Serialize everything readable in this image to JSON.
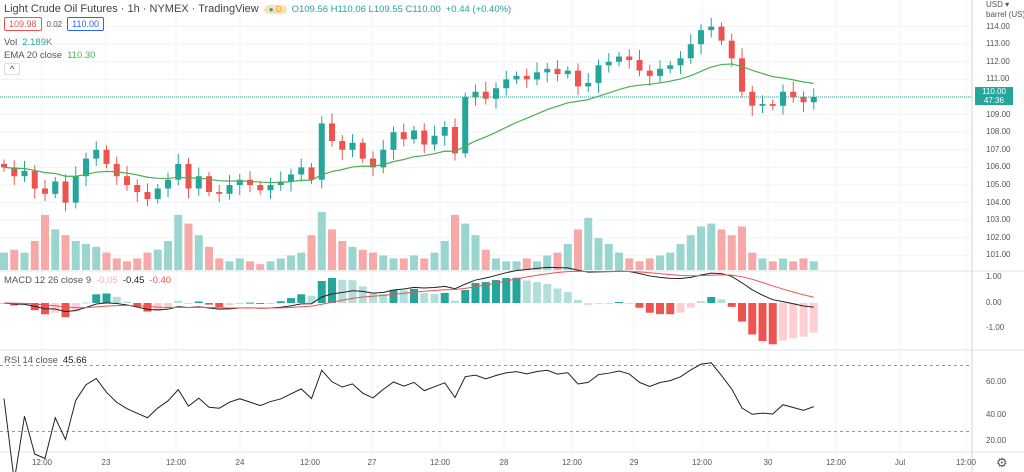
{
  "header": {
    "title": "Light Crude Oil Futures · 1h · NYMEX · TradingView",
    "badge": "D",
    "ohlc": "O109.56 H110.06 L109.55 C110.00",
    "change": "+0.44 (+0.40%)",
    "bid": "109.98",
    "spread": "0.02",
    "ask": "110.00"
  },
  "indicators": {
    "vol_label": "Vol",
    "vol_value": "2.189K",
    "ema_label": "EMA 20 close",
    "ema_value": "110.30",
    "collapse": "^",
    "macd_label": "MACD 12 26 close 9",
    "macd_hist": "-0.05",
    "macd_value": "-0.45",
    "macd_signal": "-0.40",
    "rsi_label": "RSI 14 close",
    "rsi_value": "45.66"
  },
  "price_axis": {
    "currency": "USD ▾",
    "unit": "barrel (US) ▾",
    "labels": [
      "114.00",
      "113.00",
      "112.00",
      "111.00",
      "109.00",
      "108.00",
      "107.00",
      "106.00",
      "105.00",
      "104.00",
      "103.00",
      "102.00",
      "101.00"
    ],
    "last_price": "110.00",
    "countdown": "47:36",
    "macd_labels": [
      "1.00",
      "0.00",
      "-1.00"
    ],
    "rsi_labels": [
      "60.00",
      "40.00",
      "20.00"
    ]
  },
  "time_axis": [
    "12:00",
    "23",
    "12:00",
    "24",
    "12:00",
    "27",
    "12:00",
    "28",
    "12:00",
    "29",
    "12:00",
    "30",
    "12:00",
    "Jul",
    "12:00"
  ],
  "colors": {
    "up": "#26a69a",
    "down": "#ef5350",
    "ema": "#4caf50"
  },
  "chart_data": {
    "type": "candlestick",
    "closes": [
      106,
      105.5,
      105.8,
      104.8,
      104.5,
      105.2,
      104,
      105.5,
      106.5,
      107,
      106.2,
      105.5,
      105,
      104.6,
      104.2,
      104.8,
      105.3,
      106.2,
      104.8,
      105.5,
      104.6,
      104.5,
      105,
      105.3,
      105,
      104.7,
      105,
      105.2,
      105.6,
      106,
      105.3,
      108.5,
      107.5,
      107,
      107.4,
      106.5,
      106,
      107,
      108,
      107.6,
      108.1,
      107.3,
      107.8,
      108.3,
      106.8,
      110,
      110.3,
      109.9,
      110.5,
      111,
      111.2,
      111,
      111.4,
      111.6,
      111.3,
      111.5,
      110.6,
      110.8,
      111.8,
      112,
      112.3,
      112.1,
      111.5,
      111.2,
      111.6,
      111.8,
      112.2,
      113,
      113.8,
      114,
      113.2,
      112.2,
      110.3,
      109.5,
      109.6,
      109.5,
      110.3,
      110,
      109.7,
      110
    ],
    "volumes": [
      0.3,
      0.35,
      0.3,
      0.5,
      0.95,
      0.7,
      0.6,
      0.5,
      0.45,
      0.4,
      0.3,
      0.2,
      0.15,
      0.2,
      0.3,
      0.35,
      0.5,
      0.95,
      0.8,
      0.6,
      0.4,
      0.2,
      0.15,
      0.2,
      0.15,
      0.1,
      0.15,
      0.2,
      0.25,
      0.3,
      0.6,
      1.0,
      0.7,
      0.5,
      0.4,
      0.35,
      0.3,
      0.25,
      0.2,
      0.2,
      0.25,
      0.2,
      0.3,
      0.5,
      0.95,
      0.8,
      0.6,
      0.35,
      0.2,
      0.15,
      0.15,
      0.2,
      0.15,
      0.25,
      0.3,
      0.45,
      0.7,
      0.9,
      0.55,
      0.45,
      0.3,
      0.2,
      0.15,
      0.2,
      0.25,
      0.3,
      0.45,
      0.6,
      0.75,
      0.8,
      0.7,
      0.6,
      0.75,
      0.3,
      0.2,
      0.15,
      0.2,
      0.15,
      0.2,
      0.15
    ],
    "ylim": [
      100.5,
      114.5
    ],
    "ema_period": 20,
    "rsi_levels": [
      70,
      30
    ]
  }
}
